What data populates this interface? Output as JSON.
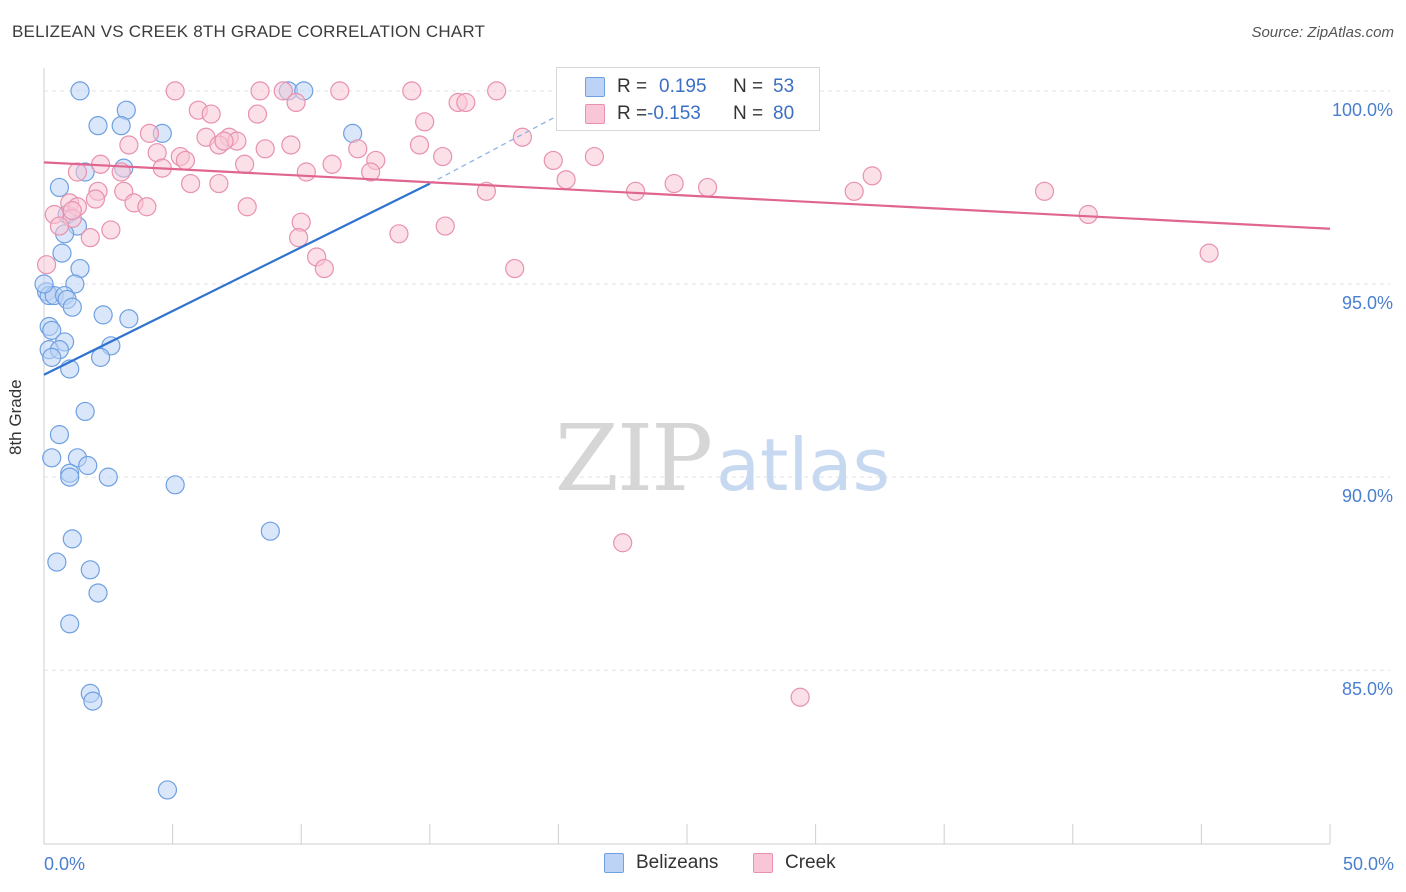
{
  "title": "BELIZEAN VS CREEK 8TH GRADE CORRELATION CHART",
  "source": "Source: ZipAtlas.com",
  "watermark": {
    "zip": "ZIP",
    "atlas": "atlas"
  },
  "stats": [
    {
      "r_label": "R =",
      "r_value": "0.195",
      "n_label": "N =",
      "n_value": "53",
      "color": "#6fa0e0",
      "fill": "#bcd3f5"
    },
    {
      "r_label": "R =",
      "r_value": "-0.153",
      "n_label": "N =",
      "n_value": "80",
      "color": "#e891b0",
      "fill": "#f8c6d6"
    }
  ],
  "legend": [
    {
      "label": "Belizeans",
      "color": "#6fa0e0",
      "fill": "#bcd3f5"
    },
    {
      "label": "Creek",
      "color": "#e891b0",
      "fill": "#f8c6d6"
    }
  ],
  "chart_data": {
    "type": "scatter",
    "title": "BELIZEAN VS CREEK 8TH GRADE CORRELATION CHART",
    "xlabel": "",
    "ylabel": "8th Grade",
    "xlim": [
      0,
      50
    ],
    "ylim": [
      80.5,
      100.8
    ],
    "x_tick_labels": [
      {
        "value": 0,
        "label": "0.0%"
      },
      {
        "value": 50,
        "label": "50.0%"
      }
    ],
    "y_tick_labels": [
      {
        "value": 100,
        "label": "100.0%"
      },
      {
        "value": 95,
        "label": "95.0%"
      },
      {
        "value": 90,
        "label": "90.0%"
      },
      {
        "value": 85,
        "label": "85.0%"
      }
    ],
    "x_minor_ticks": [
      0,
      5,
      10,
      15,
      20,
      25,
      30,
      35,
      40,
      45,
      50
    ],
    "series": [
      {
        "name": "Belizeans",
        "color": "#3d7fd9",
        "fill": "#bcd3f5",
        "points": [
          [
            1.4,
            100.0
          ],
          [
            9.5,
            100.0
          ],
          [
            10.1,
            100.0
          ],
          [
            2.1,
            99.1
          ],
          [
            3.2,
            99.5
          ],
          [
            3.0,
            99.1
          ],
          [
            4.6,
            98.9
          ],
          [
            12.0,
            98.9
          ],
          [
            1.6,
            97.9
          ],
          [
            3.1,
            98.0
          ],
          [
            0.6,
            97.5
          ],
          [
            0.9,
            96.8
          ],
          [
            1.3,
            96.5
          ],
          [
            0.8,
            96.3
          ],
          [
            0.7,
            95.8
          ],
          [
            1.4,
            95.4
          ],
          [
            1.2,
            95.0
          ],
          [
            0.1,
            94.8
          ],
          [
            0.2,
            94.7
          ],
          [
            0.4,
            94.7
          ],
          [
            0.8,
            94.7
          ],
          [
            0.9,
            94.6
          ],
          [
            1.1,
            94.4
          ],
          [
            2.3,
            94.2
          ],
          [
            3.3,
            94.1
          ],
          [
            0.2,
            93.9
          ],
          [
            0.3,
            93.8
          ],
          [
            0.8,
            93.5
          ],
          [
            0.2,
            93.3
          ],
          [
            0.6,
            93.3
          ],
          [
            2.6,
            93.4
          ],
          [
            0.3,
            93.1
          ],
          [
            2.2,
            93.1
          ],
          [
            1.0,
            92.8
          ],
          [
            1.6,
            91.7
          ],
          [
            0.6,
            91.1
          ],
          [
            0.3,
            90.5
          ],
          [
            1.3,
            90.5
          ],
          [
            1.7,
            90.3
          ],
          [
            1.0,
            90.1
          ],
          [
            1.0,
            90.0
          ],
          [
            2.5,
            90.0
          ],
          [
            5.1,
            89.8
          ],
          [
            8.8,
            88.6
          ],
          [
            1.1,
            88.4
          ],
          [
            0.5,
            87.8
          ],
          [
            1.8,
            87.6
          ],
          [
            2.1,
            87.0
          ],
          [
            1.0,
            86.2
          ],
          [
            1.8,
            84.4
          ],
          [
            1.9,
            84.2
          ],
          [
            4.8,
            81.9
          ],
          [
            0.0,
            95.0
          ]
        ],
        "trend": {
          "x0": 0,
          "y0": 92.65,
          "x1": 15,
          "y1": 97.6,
          "dash_x1": 21.5,
          "dash_y1": 99.9
        }
      },
      {
        "name": "Creek",
        "color": "#e46b96",
        "fill": "#f8c6d6",
        "points": [
          [
            5.1,
            100.0
          ],
          [
            8.4,
            100.0
          ],
          [
            9.3,
            100.0
          ],
          [
            11.5,
            100.0
          ],
          [
            14.3,
            100.0
          ],
          [
            17.6,
            100.0
          ],
          [
            22.8,
            100.0
          ],
          [
            24.2,
            100.0
          ],
          [
            9.8,
            99.7
          ],
          [
            16.1,
            99.7
          ],
          [
            16.4,
            99.7
          ],
          [
            6.0,
            99.5
          ],
          [
            6.5,
            99.4
          ],
          [
            8.3,
            99.4
          ],
          [
            14.8,
            99.2
          ],
          [
            4.1,
            98.9
          ],
          [
            6.3,
            98.8
          ],
          [
            7.2,
            98.8
          ],
          [
            7.5,
            98.7
          ],
          [
            18.6,
            98.8
          ],
          [
            3.3,
            98.6
          ],
          [
            6.8,
            98.6
          ],
          [
            8.6,
            98.5
          ],
          [
            9.6,
            98.6
          ],
          [
            12.2,
            98.5
          ],
          [
            14.6,
            98.6
          ],
          [
            4.4,
            98.4
          ],
          [
            5.3,
            98.3
          ],
          [
            5.5,
            98.2
          ],
          [
            11.2,
            98.1
          ],
          [
            12.9,
            98.2
          ],
          [
            15.5,
            98.3
          ],
          [
            21.4,
            98.3
          ],
          [
            2.2,
            98.1
          ],
          [
            4.6,
            98.0
          ],
          [
            7.8,
            98.1
          ],
          [
            10.2,
            97.9
          ],
          [
            12.7,
            97.9
          ],
          [
            1.3,
            97.9
          ],
          [
            3.0,
            97.9
          ],
          [
            20.3,
            97.7
          ],
          [
            32.2,
            97.8
          ],
          [
            5.7,
            97.6
          ],
          [
            6.8,
            97.6
          ],
          [
            17.2,
            97.4
          ],
          [
            23.0,
            97.4
          ],
          [
            24.5,
            97.6
          ],
          [
            31.5,
            97.4
          ],
          [
            38.9,
            97.4
          ],
          [
            2.1,
            97.4
          ],
          [
            3.1,
            97.4
          ],
          [
            2.0,
            97.2
          ],
          [
            3.5,
            97.1
          ],
          [
            1.0,
            97.1
          ],
          [
            7.9,
            97.0
          ],
          [
            1.3,
            97.0
          ],
          [
            4.0,
            97.0
          ],
          [
            0.4,
            96.8
          ],
          [
            1.1,
            96.7
          ],
          [
            0.6,
            96.5
          ],
          [
            40.6,
            96.8
          ],
          [
            10.0,
            96.6
          ],
          [
            1.8,
            96.2
          ],
          [
            2.6,
            96.4
          ],
          [
            9.9,
            96.2
          ],
          [
            13.8,
            96.3
          ],
          [
            15.6,
            96.5
          ],
          [
            10.6,
            95.7
          ],
          [
            18.3,
            95.4
          ],
          [
            45.3,
            95.8
          ],
          [
            0.1,
            95.5
          ],
          [
            10.9,
            95.4
          ],
          [
            22.5,
            88.3
          ],
          [
            29.4,
            84.3
          ],
          [
            1.1,
            96.9
          ],
          [
            7.0,
            98.7
          ],
          [
            24.9,
            99.4
          ],
          [
            23.5,
            100.0
          ],
          [
            19.8,
            98.2
          ],
          [
            25.8,
            97.5
          ]
        ],
        "trend": {
          "x0": 0,
          "y0": 98.15,
          "x1": 50,
          "y1": 96.43
        }
      }
    ]
  }
}
